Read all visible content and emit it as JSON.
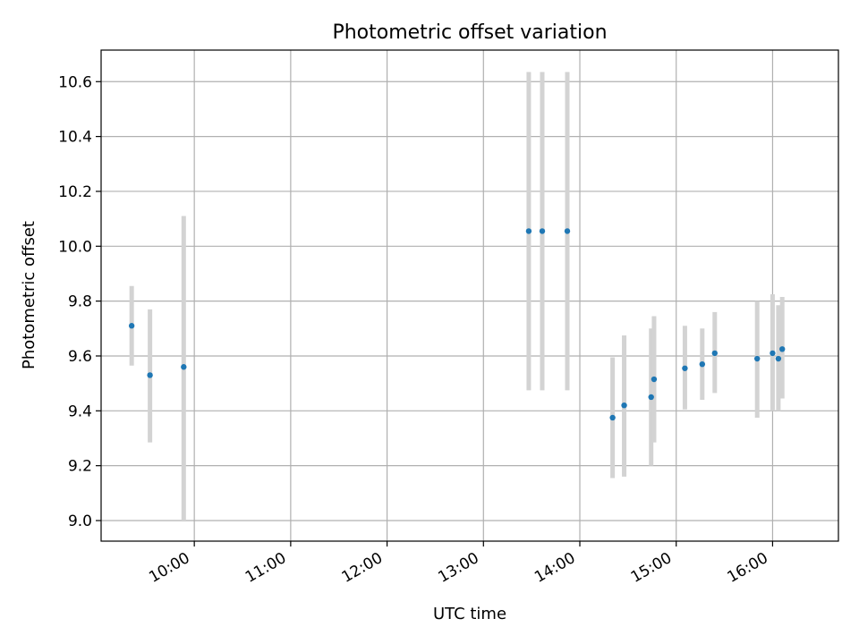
{
  "chart_data": {
    "type": "scatter",
    "title": "Photometric offset variation",
    "xlabel": "UTC time",
    "ylabel": "Photometric offset",
    "x_unit": "hours (UTC)",
    "xlim": [
      9.033,
      16.683
    ],
    "ylim": [
      8.925,
      10.715
    ],
    "xticks": [
      10,
      11,
      12,
      13,
      14,
      15,
      16
    ],
    "xtick_labels": [
      "10:00",
      "11:00",
      "12:00",
      "13:00",
      "14:00",
      "15:00",
      "16:00"
    ],
    "yticks": [
      9.0,
      9.2,
      9.4,
      9.6,
      9.8,
      10.0,
      10.2,
      10.4,
      10.6
    ],
    "ytick_labels": [
      "9.0",
      "9.2",
      "9.4",
      "9.6",
      "9.8",
      "10.0",
      "10.2",
      "10.4",
      "10.6"
    ],
    "grid": true,
    "colors": {
      "point": "#1f77b4",
      "errorbar": "#d3d3d3",
      "grid": "#b0b0b0"
    },
    "points": [
      {
        "x": 9.35,
        "y": 9.71,
        "ylow": 9.565,
        "yhigh": 9.855
      },
      {
        "x": 9.54,
        "y": 9.53,
        "ylow": 9.285,
        "yhigh": 9.77
      },
      {
        "x": 9.89,
        "y": 9.56,
        "ylow": 9.0,
        "yhigh": 10.11
      },
      {
        "x": 13.47,
        "y": 10.055,
        "ylow": 9.475,
        "yhigh": 10.635
      },
      {
        "x": 13.61,
        "y": 10.055,
        "ylow": 9.475,
        "yhigh": 10.635
      },
      {
        "x": 13.87,
        "y": 10.055,
        "ylow": 9.475,
        "yhigh": 10.635
      },
      {
        "x": 14.34,
        "y": 9.375,
        "ylow": 9.155,
        "yhigh": 9.595
      },
      {
        "x": 14.46,
        "y": 9.42,
        "ylow": 9.16,
        "yhigh": 9.675
      },
      {
        "x": 14.74,
        "y": 9.45,
        "ylow": 9.2,
        "yhigh": 9.7
      },
      {
        "x": 14.77,
        "y": 9.515,
        "ylow": 9.285,
        "yhigh": 9.745
      },
      {
        "x": 15.09,
        "y": 9.555,
        "ylow": 9.405,
        "yhigh": 9.71
      },
      {
        "x": 15.27,
        "y": 9.57,
        "ylow": 9.44,
        "yhigh": 9.7
      },
      {
        "x": 15.4,
        "y": 9.61,
        "ylow": 9.465,
        "yhigh": 9.76
      },
      {
        "x": 15.84,
        "y": 9.59,
        "ylow": 9.375,
        "yhigh": 9.8
      },
      {
        "x": 16.0,
        "y": 9.61,
        "ylow": 9.4,
        "yhigh": 9.825
      },
      {
        "x": 16.06,
        "y": 9.59,
        "ylow": 9.4,
        "yhigh": 9.785
      },
      {
        "x": 16.1,
        "y": 9.625,
        "ylow": 9.445,
        "yhigh": 9.815
      }
    ]
  }
}
